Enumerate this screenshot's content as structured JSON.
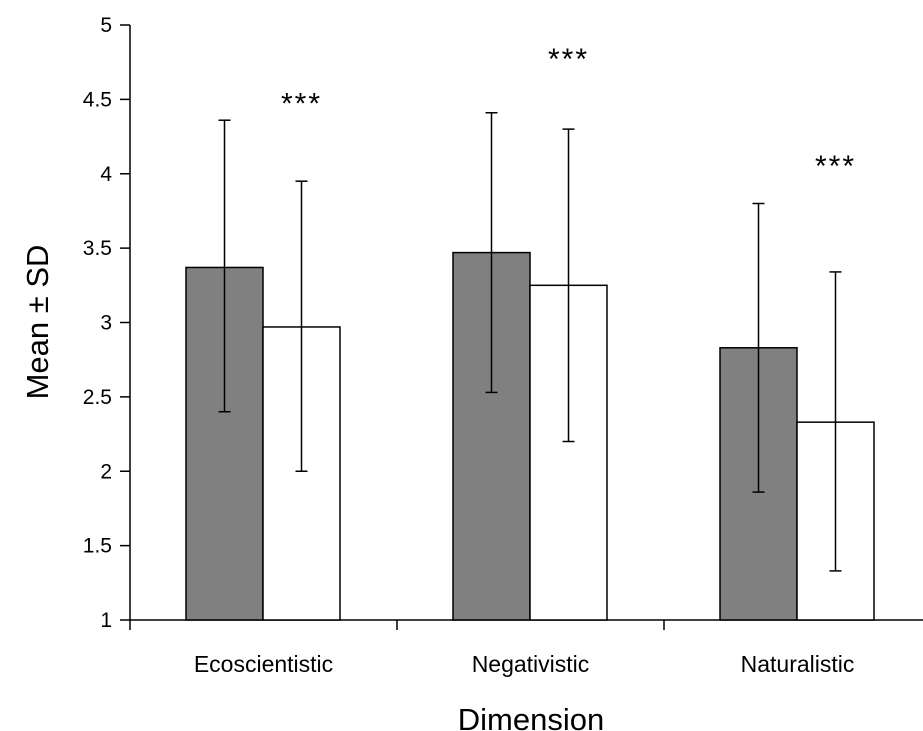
{
  "chart_data": {
    "type": "bar",
    "title": "",
    "xlabel": "Dimension",
    "ylabel": "Mean ± SD",
    "ylim": [
      1,
      5
    ],
    "yticks": [
      1,
      1.5,
      2,
      2.5,
      3,
      3.5,
      4,
      4.5,
      5
    ],
    "ytick_labels": [
      "1",
      "1.5",
      "2",
      "2.5",
      "3",
      "3.5",
      "4",
      "4.5",
      "5"
    ],
    "categories": [
      "Ecoscientistic",
      "Negativistic",
      "Naturalistic"
    ],
    "series": [
      {
        "color": "#808080",
        "values": [
          3.37,
          3.47,
          2.83
        ],
        "sd_low": [
          2.4,
          2.53,
          1.86
        ],
        "sd_high": [
          4.36,
          4.41,
          3.8
        ]
      },
      {
        "color": "#ffffff",
        "values": [
          2.97,
          3.25,
          2.33
        ],
        "sd_low": [
          2.0,
          2.2,
          1.33
        ],
        "sd_high": [
          3.95,
          4.3,
          3.34
        ]
      }
    ],
    "annotations": [
      {
        "text": "***",
        "category": 0,
        "y": 4.5
      },
      {
        "text": "***",
        "category": 1,
        "y": 4.8
      },
      {
        "text": "***",
        "category": 2,
        "y": 4.08
      }
    ],
    "grid": false,
    "legend": "none"
  }
}
